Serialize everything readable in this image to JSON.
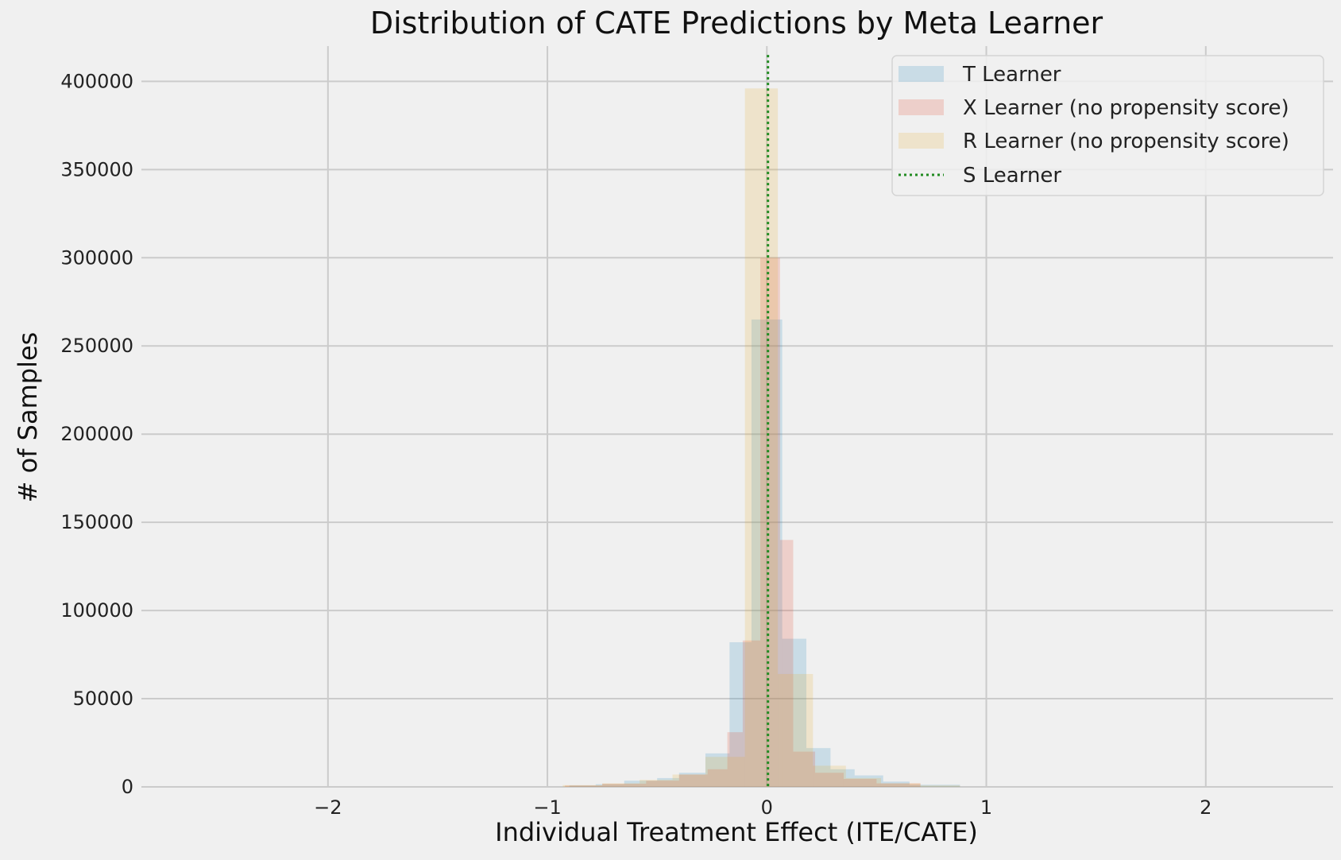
{
  "chart_data": {
    "type": "histogram",
    "title": "Distribution of CATE Predictions by Meta Learner",
    "xlabel": "Individual Treatment Effect (ITE/CATE)",
    "ylabel": "# of Samples",
    "xlim": [
      -2.85,
      2.58
    ],
    "ylim": [
      0,
      420000
    ],
    "x_ticks": [
      -2,
      -1,
      0,
      1,
      2
    ],
    "x_tick_labels": [
      "−2",
      "−1",
      "0",
      "1",
      "2"
    ],
    "y_ticks": [
      0,
      50000,
      100000,
      150000,
      200000,
      250000,
      300000,
      350000,
      400000
    ],
    "y_tick_labels": [
      "0",
      "50000",
      "100000",
      "150000",
      "200000",
      "250000",
      "300000",
      "350000",
      "400000"
    ],
    "grid": true,
    "legend_position": "top-right",
    "series": [
      {
        "name": "T Learner",
        "kind": "histogram",
        "color": "#2b8cbe",
        "bins": [
          {
            "x0": -0.9,
            "x1": -0.78,
            "count": 800
          },
          {
            "x0": -0.78,
            "x1": -0.65,
            "count": 1500
          },
          {
            "x0": -0.65,
            "x1": -0.5,
            "count": 3500
          },
          {
            "x0": -0.5,
            "x1": -0.4,
            "count": 5000
          },
          {
            "x0": -0.4,
            "x1": -0.28,
            "count": 8000
          },
          {
            "x0": -0.28,
            "x1": -0.17,
            "count": 19000
          },
          {
            "x0": -0.17,
            "x1": -0.07,
            "count": 82000
          },
          {
            "x0": -0.07,
            "x1": 0.07,
            "count": 265000
          },
          {
            "x0": 0.07,
            "x1": 0.18,
            "count": 84000
          },
          {
            "x0": 0.18,
            "x1": 0.29,
            "count": 22000
          },
          {
            "x0": 0.29,
            "x1": 0.4,
            "count": 10000
          },
          {
            "x0": 0.4,
            "x1": 0.53,
            "count": 6500
          },
          {
            "x0": 0.53,
            "x1": 0.65,
            "count": 3000
          },
          {
            "x0": 0.65,
            "x1": 0.88,
            "count": 1200
          }
        ]
      },
      {
        "name": "X Learner (no propensity score)",
        "kind": "histogram",
        "color": "#e24a33",
        "bins": [
          {
            "x0": -0.92,
            "x1": -0.75,
            "count": 800
          },
          {
            "x0": -0.75,
            "x1": -0.55,
            "count": 1800
          },
          {
            "x0": -0.55,
            "x1": -0.4,
            "count": 3500
          },
          {
            "x0": -0.4,
            "x1": -0.27,
            "count": 7000
          },
          {
            "x0": -0.27,
            "x1": -0.18,
            "count": 10000
          },
          {
            "x0": -0.18,
            "x1": -0.11,
            "count": 31000
          },
          {
            "x0": -0.11,
            "x1": -0.03,
            "count": 83000
          },
          {
            "x0": -0.03,
            "x1": 0.06,
            "count": 300000
          },
          {
            "x0": 0.06,
            "x1": 0.12,
            "count": 140000
          },
          {
            "x0": 0.12,
            "x1": 0.22,
            "count": 20000
          },
          {
            "x0": 0.22,
            "x1": 0.35,
            "count": 8000
          },
          {
            "x0": 0.35,
            "x1": 0.5,
            "count": 4500
          },
          {
            "x0": 0.5,
            "x1": 0.7,
            "count": 2000
          }
        ]
      },
      {
        "name": "R Learner (no propensity score)",
        "kind": "histogram",
        "color": "#e5ae38",
        "bins": [
          {
            "x0": -0.93,
            "x1": -0.75,
            "count": 1000
          },
          {
            "x0": -0.75,
            "x1": -0.58,
            "count": 2000
          },
          {
            "x0": -0.58,
            "x1": -0.43,
            "count": 4000
          },
          {
            "x0": -0.43,
            "x1": -0.28,
            "count": 7000
          },
          {
            "x0": -0.28,
            "x1": -0.1,
            "count": 17000
          },
          {
            "x0": -0.1,
            "x1": 0.05,
            "count": 396000
          },
          {
            "x0": 0.05,
            "x1": 0.21,
            "count": 64000
          },
          {
            "x0": 0.21,
            "x1": 0.36,
            "count": 12000
          },
          {
            "x0": 0.36,
            "x1": 0.52,
            "count": 5000
          },
          {
            "x0": 0.52,
            "x1": 0.7,
            "count": 2000
          },
          {
            "x0": 0.7,
            "x1": 0.88,
            "count": 800
          }
        ]
      },
      {
        "name": "S Learner",
        "kind": "vline",
        "color": "#228b22",
        "x": 0.005,
        "ymax": 415000
      }
    ]
  }
}
